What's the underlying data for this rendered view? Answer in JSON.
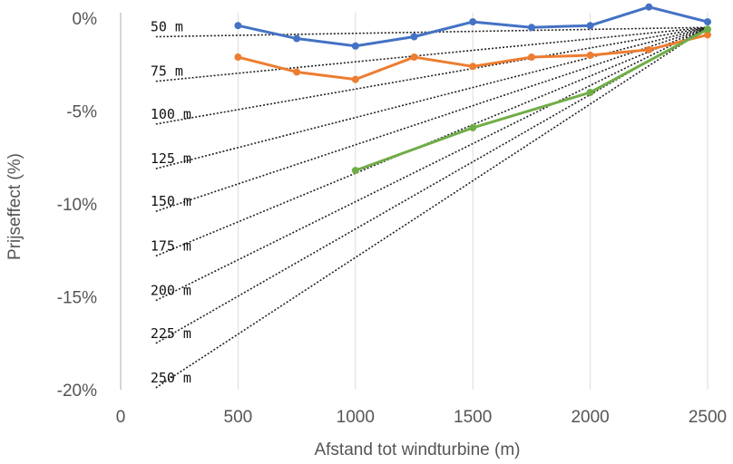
{
  "chart_data": {
    "type": "line",
    "xlabel": "Afstand tot windturbine (m)",
    "ylabel": "Prijseffect (%)",
    "xlim": [
      0,
      2500
    ],
    "ylim": [
      -20,
      0
    ],
    "x_ticks": [
      "0",
      "500",
      "1000",
      "1500",
      "2000",
      "2500"
    ],
    "y_ticks": [
      "0%",
      "-5%",
      "-10%",
      "-15%",
      "-20%"
    ],
    "grid": "vertical",
    "legend": "none",
    "series": [
      {
        "color": "#4472c4",
        "x": [
          500,
          750,
          1000,
          1250,
          1500,
          1750,
          2000,
          2250,
          2500
        ],
        "y": [
          -0.4,
          -1.1,
          -1.5,
          -1.0,
          -0.2,
          -0.5,
          -0.4,
          0.6,
          -0.2
        ]
      },
      {
        "color": "#ed7d31",
        "x": [
          500,
          750,
          1000,
          1250,
          1500,
          1750,
          2000,
          2250,
          2500
        ],
        "y": [
          -2.1,
          -2.9,
          -3.3,
          -2.1,
          -2.6,
          -2.1,
          -2.0,
          -1.7,
          -0.9
        ]
      },
      {
        "color": "#70ad47",
        "x": [
          1000,
          1500,
          2000,
          2500
        ],
        "y": [
          -8.2,
          -5.9,
          -4.0,
          -0.6
        ]
      }
    ],
    "reference_lines": {
      "end": [
        2500,
        -0.5
      ],
      "lines": [
        {
          "label": "50 m",
          "start": [
            150,
            -1.0
          ]
        },
        {
          "label": "75 m",
          "start": [
            150,
            -3.4
          ]
        },
        {
          "label": "100 m",
          "start": [
            150,
            -5.7
          ]
        },
        {
          "label": "125 m",
          "start": [
            150,
            -8.1
          ]
        },
        {
          "label": "150 m",
          "start": [
            150,
            -10.4
          ]
        },
        {
          "label": "175 m",
          "start": [
            150,
            -12.8
          ]
        },
        {
          "label": "200 m",
          "start": [
            150,
            -15.2
          ]
        },
        {
          "label": "225 m",
          "start": [
            150,
            -17.5
          ]
        },
        {
          "label": "250 m",
          "start": [
            150,
            -19.9
          ]
        }
      ]
    }
  }
}
